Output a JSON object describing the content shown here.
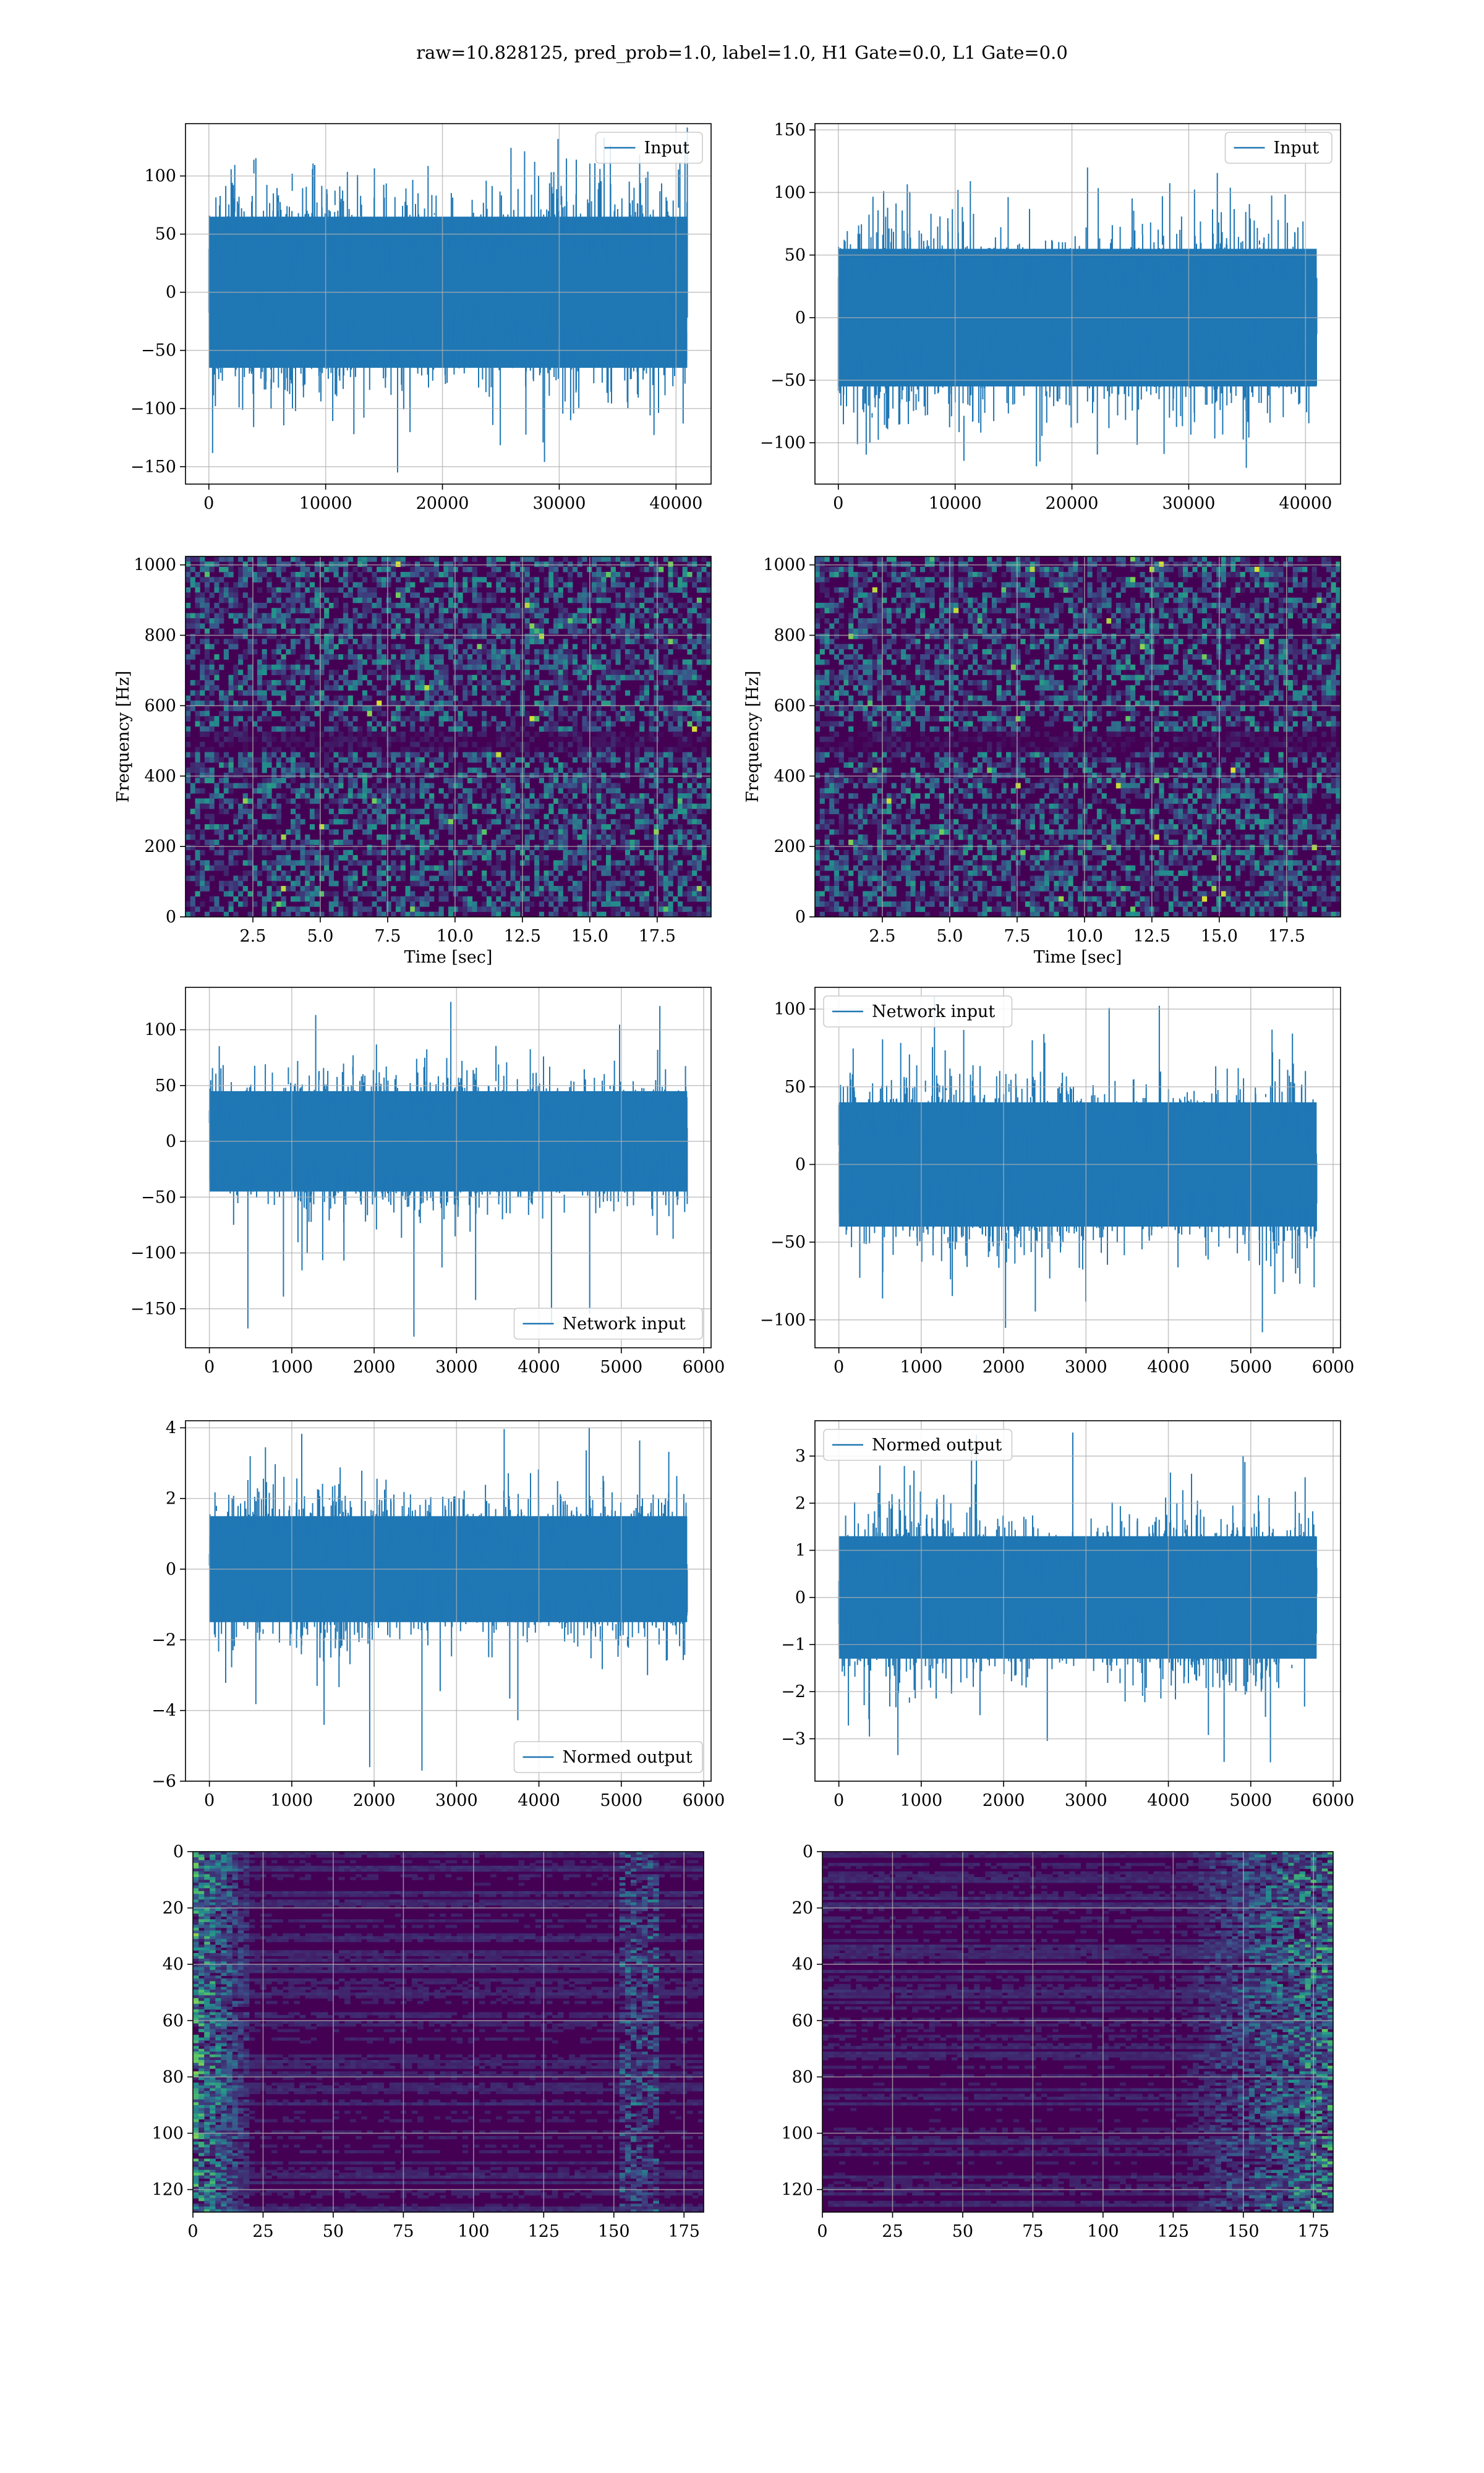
{
  "suptitle": "raw=10.828125, pred_prob=1.0, label=1.0, H1 Gate=0.0, L1 Gate=0.0",
  "colors": {
    "line": "#1f77b4",
    "grid": "#b0b0b0",
    "viridis_dark": "#440154"
  },
  "chart_data": [
    {
      "type": "line",
      "panel": "row1-left",
      "series": [
        {
          "name": "Input",
          "n": 40960,
          "amplitude_typical": [
            -65,
            65
          ],
          "amplitude_extreme": [
            -155,
            133
          ]
        }
      ],
      "xlim": [
        -2000,
        43000
      ],
      "ylim": [
        -165,
        145
      ],
      "xticks": [
        0,
        10000,
        20000,
        30000,
        40000
      ],
      "yticks": [
        -150,
        -100,
        -50,
        0,
        50,
        100
      ],
      "xtick_labels": [
        "0",
        "10000",
        "20000",
        "30000",
        "40000"
      ],
      "ytick_labels": [
        "−150",
        "−100",
        "−50",
        "0",
        "50",
        "100"
      ],
      "legend": "upper right",
      "grid": true
    },
    {
      "type": "line",
      "panel": "row1-right",
      "series": [
        {
          "name": "Input",
          "n": 40960,
          "amplitude_typical": [
            -55,
            55
          ],
          "amplitude_extreme": [
            -120,
            120
          ]
        }
      ],
      "xlim": [
        -2000,
        43000
      ],
      "ylim": [
        -133,
        155
      ],
      "xticks": [
        0,
        10000,
        20000,
        30000,
        40000
      ],
      "yticks": [
        -100,
        -50,
        0,
        50,
        100,
        150
      ],
      "xtick_labels": [
        "0",
        "10000",
        "20000",
        "30000",
        "40000"
      ],
      "ytick_labels": [
        "−100",
        "−50",
        "0",
        "50",
        "100",
        "150"
      ],
      "legend": "upper right",
      "grid": true
    },
    {
      "type": "heatmap",
      "panel": "row2-left",
      "xlabel": "Time [sec]",
      "ylabel": "Frequency [Hz]",
      "xlim": [
        0,
        19.5
      ],
      "ylim": [
        0,
        1024
      ],
      "xticks": [
        2.5,
        5.0,
        7.5,
        10.0,
        12.5,
        15.0,
        17.5
      ],
      "yticks": [
        0,
        200,
        400,
        600,
        800,
        1000
      ],
      "xtick_labels": [
        "2.5",
        "5.0",
        "7.5",
        "10.0",
        "12.5",
        "15.0",
        "17.5"
      ],
      "ytick_labels": [
        "0",
        "200",
        "400",
        "600",
        "800",
        "1000"
      ],
      "colormap": "viridis",
      "grid": true
    },
    {
      "type": "heatmap",
      "panel": "row2-right",
      "xlabel": "Time [sec]",
      "ylabel": "Frequency [Hz]",
      "xlim": [
        0,
        19.5
      ],
      "ylim": [
        0,
        1024
      ],
      "xticks": [
        2.5,
        5.0,
        7.5,
        10.0,
        12.5,
        15.0,
        17.5
      ],
      "yticks": [
        0,
        200,
        400,
        600,
        800,
        1000
      ],
      "xtick_labels": [
        "2.5",
        "5.0",
        "7.5",
        "10.0",
        "12.5",
        "15.0",
        "17.5"
      ],
      "ytick_labels": [
        "0",
        "200",
        "400",
        "600",
        "800",
        "1000"
      ],
      "colormap": "viridis",
      "grid": true
    },
    {
      "type": "line",
      "panel": "row3-left",
      "series": [
        {
          "name": "Network input",
          "n": 5800,
          "amplitude_typical": [
            -45,
            45
          ],
          "amplitude_extreme": [
            -175,
            125
          ]
        }
      ],
      "xlim": [
        -290,
        6090
      ],
      "ylim": [
        -185,
        138
      ],
      "xticks": [
        0,
        1000,
        2000,
        3000,
        4000,
        5000,
        6000
      ],
      "yticks": [
        -150,
        -100,
        -50,
        0,
        50,
        100
      ],
      "xtick_labels": [
        "0",
        "1000",
        "2000",
        "3000",
        "4000",
        "5000",
        "6000"
      ],
      "ytick_labels": [
        "−150",
        "−100",
        "−50",
        "0",
        "50",
        "100"
      ],
      "legend": "lower right",
      "grid": true
    },
    {
      "type": "line",
      "panel": "row3-right",
      "series": [
        {
          "name": "Network input",
          "n": 5800,
          "amplitude_typical": [
            -40,
            40
          ],
          "amplitude_extreme": [
            -108,
            108
          ]
        }
      ],
      "xlim": [
        -290,
        6090
      ],
      "ylim": [
        -118,
        114
      ],
      "xticks": [
        0,
        1000,
        2000,
        3000,
        4000,
        5000,
        6000
      ],
      "yticks": [
        -100,
        -50,
        0,
        50,
        100
      ],
      "xtick_labels": [
        "0",
        "1000",
        "2000",
        "3000",
        "4000",
        "5000",
        "6000"
      ],
      "ytick_labels": [
        "−100",
        "−50",
        "0",
        "50",
        "100"
      ],
      "legend": "upper left",
      "grid": true
    },
    {
      "type": "line",
      "panel": "row4-left",
      "series": [
        {
          "name": "Normed output",
          "n": 5800,
          "amplitude_typical": [
            -1.5,
            1.5
          ],
          "amplitude_extreme": [
            -5.7,
            4.0
          ]
        }
      ],
      "xlim": [
        -290,
        6090
      ],
      "ylim": [
        -6.0,
        4.2
      ],
      "xticks": [
        0,
        1000,
        2000,
        3000,
        4000,
        5000,
        6000
      ],
      "yticks": [
        -6,
        -4,
        -2,
        0,
        2,
        4
      ],
      "xtick_labels": [
        "0",
        "1000",
        "2000",
        "3000",
        "4000",
        "5000",
        "6000"
      ],
      "ytick_labels": [
        "−6",
        "−4",
        "−2",
        "0",
        "2",
        "4"
      ],
      "legend": "lower right",
      "grid": true
    },
    {
      "type": "line",
      "panel": "row4-right",
      "series": [
        {
          "name": "Normed output",
          "n": 5800,
          "amplitude_typical": [
            -1.3,
            1.3
          ],
          "amplitude_extreme": [
            -3.5,
            3.5
          ]
        }
      ],
      "xlim": [
        -290,
        6090
      ],
      "ylim": [
        -3.9,
        3.75
      ],
      "xticks": [
        0,
        1000,
        2000,
        3000,
        4000,
        5000,
        6000
      ],
      "yticks": [
        -3,
        -2,
        -1,
        0,
        1,
        2,
        3
      ],
      "xtick_labels": [
        "0",
        "1000",
        "2000",
        "3000",
        "4000",
        "5000",
        "6000"
      ],
      "ytick_labels": [
        "−3",
        "−2",
        "−1",
        "0",
        "1",
        "2",
        "3"
      ],
      "legend": "upper left",
      "grid": true
    },
    {
      "type": "heatmap",
      "panel": "row5-left",
      "xlim": [
        0,
        182
      ],
      "ylim": [
        128,
        0
      ],
      "xticks": [
        0,
        25,
        50,
        75,
        100,
        125,
        150,
        175
      ],
      "yticks": [
        0,
        20,
        40,
        60,
        80,
        100,
        120
      ],
      "xtick_labels": [
        "0",
        "25",
        "50",
        "75",
        "100",
        "125",
        "150",
        "175"
      ],
      "ytick_labels": [
        "0",
        "20",
        "40",
        "60",
        "80",
        "100",
        "120"
      ],
      "colormap": "viridis",
      "grid": true
    },
    {
      "type": "heatmap",
      "panel": "row5-right",
      "xlim": [
        0,
        182
      ],
      "ylim": [
        128,
        0
      ],
      "xticks": [
        0,
        25,
        50,
        75,
        100,
        125,
        150,
        175
      ],
      "yticks": [
        0,
        20,
        40,
        60,
        80,
        100,
        120
      ],
      "xtick_labels": [
        "0",
        "25",
        "50",
        "75",
        "100",
        "125",
        "150",
        "175"
      ],
      "ytick_labels": [
        "0",
        "20",
        "40",
        "60",
        "80",
        "100",
        "120"
      ],
      "colormap": "viridis",
      "grid": true
    }
  ]
}
